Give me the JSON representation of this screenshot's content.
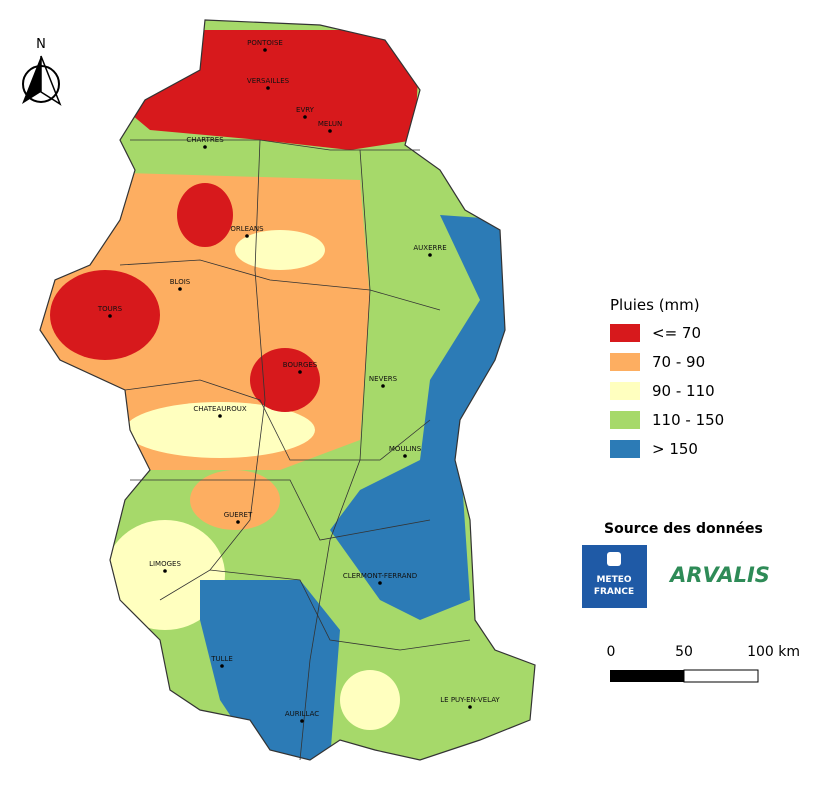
{
  "north": "N",
  "cities": [
    "PONTOISE",
    "VERSAILLES",
    "EVRY",
    "MELUN",
    "CHARTRES",
    "ORLEANS",
    "AUXERRE",
    "BLOIS",
    "TOURS",
    "BOURGES",
    "NEVERS",
    "CHATEAUROUX",
    "MOULINS",
    "GUERET",
    "LIMOGES",
    "CLERMONT-FERRAND",
    "TULLE",
    "LE PUY-EN-VELAY",
    "AURILLAC"
  ],
  "legend": {
    "title": "Pluies (mm)",
    "items": [
      {
        "label": "<= 70",
        "color": "#d7191c"
      },
      {
        "label": "70 - 90",
        "color": "#fdae61"
      },
      {
        "label": "90 - 110",
        "color": "#ffffbf"
      },
      {
        "label": "110 - 150",
        "color": "#a6d96a"
      },
      {
        "label": "> 150",
        "color": "#2c7bb6"
      }
    ]
  },
  "source": {
    "title": "Source des données",
    "meteo": [
      "METEO",
      "FRANCE"
    ],
    "arvalis": "ARVALIS"
  },
  "scale": [
    "0",
    "50",
    "100 km"
  ]
}
